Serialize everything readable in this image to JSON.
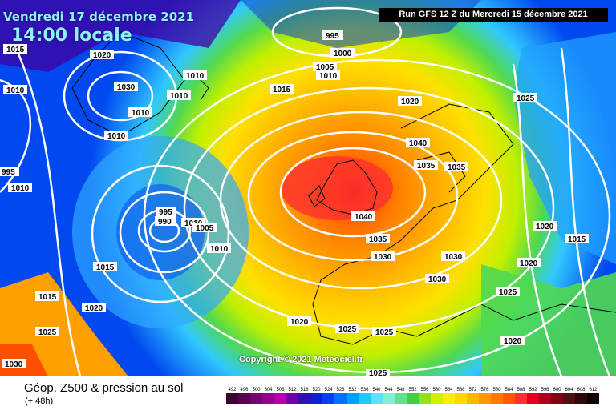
{
  "header": {
    "date_line": "Vendredi 17 décembre 2021",
    "time_line": "14:00 locale",
    "run_label": "Run GFS 12 Z du Mercredi 15 décembre 2021"
  },
  "map": {
    "copyright": "Copyright © 2021 Meteociel.fr",
    "isobar_labels": [
      "1015",
      "1020",
      "995",
      "1000",
      "1005",
      "1010",
      "1015",
      "1020",
      "1025",
      "1030",
      "1010",
      "1010",
      "1010",
      "1010",
      "1010",
      "1010",
      "995",
      "995",
      "990",
      "1010",
      "1005",
      "1010",
      "1015",
      "1015",
      "1020",
      "1025",
      "1030",
      "1040",
      "1035",
      "1035",
      "1040",
      "1035",
      "1030",
      "1030",
      "1030",
      "1020",
      "1025",
      "1025",
      "1025",
      "1020",
      "1025",
      "1020",
      "1015",
      "1020"
    ],
    "colors": {
      "background": "#ff9900",
      "isobars": "#ffffff"
    }
  },
  "legend": {
    "title": "Géop. Z500 & pression au sol",
    "subtitle": "(+ 48h)",
    "scale_values": [
      "492",
      "496",
      "500",
      "504",
      "508",
      "512",
      "516",
      "520",
      "524",
      "528",
      "532",
      "536",
      "540",
      "544",
      "548",
      "552",
      "556",
      "560",
      "564",
      "568",
      "572",
      "576",
      "580",
      "584",
      "588",
      "592",
      "596",
      "600",
      "604",
      "608",
      "612"
    ],
    "scale_colors": [
      "#3d0033",
      "#58004f",
      "#780070",
      "#98008f",
      "#b800b0",
      "#7000a8",
      "#3010b0",
      "#1020d0",
      "#0040f0",
      "#0070ff",
      "#00a0ff",
      "#20c8ff",
      "#60e0ff",
      "#80f0d0",
      "#60e090",
      "#40d040",
      "#90e020",
      "#d0f000",
      "#f8f000",
      "#ffd800",
      "#ffb800",
      "#ff9800",
      "#ff7800",
      "#ff5800",
      "#ff3030",
      "#e00020",
      "#b00020",
      "#800018",
      "#501010",
      "#300808",
      "#100000"
    ]
  }
}
